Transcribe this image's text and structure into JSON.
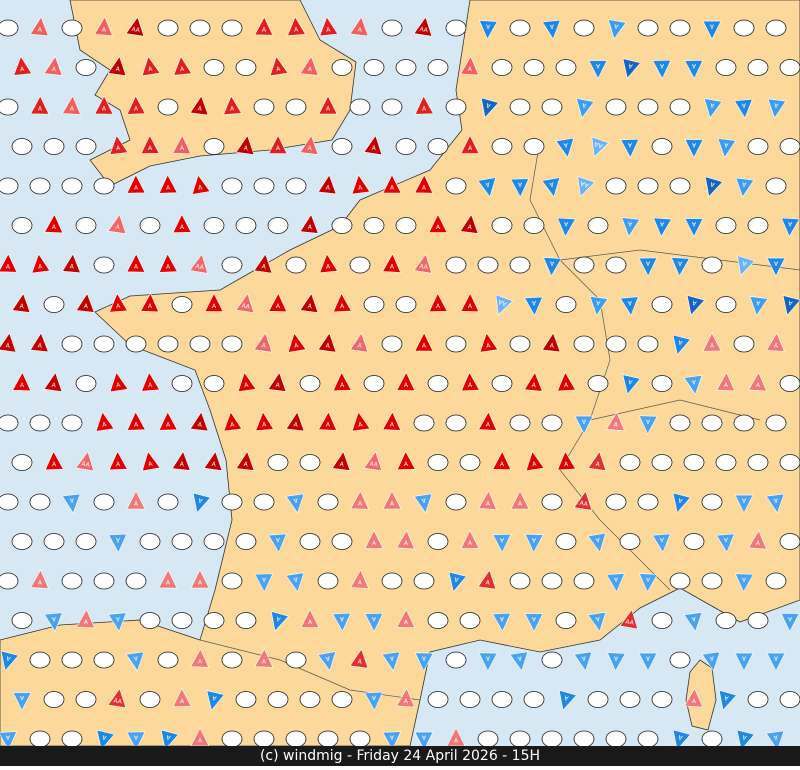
{
  "footer": "(c) windmig - Friday 24 April 2026 - 15H",
  "marker_labels": {
    "a": "A",
    "aa": "AA",
    "d": "D"
  }
}
